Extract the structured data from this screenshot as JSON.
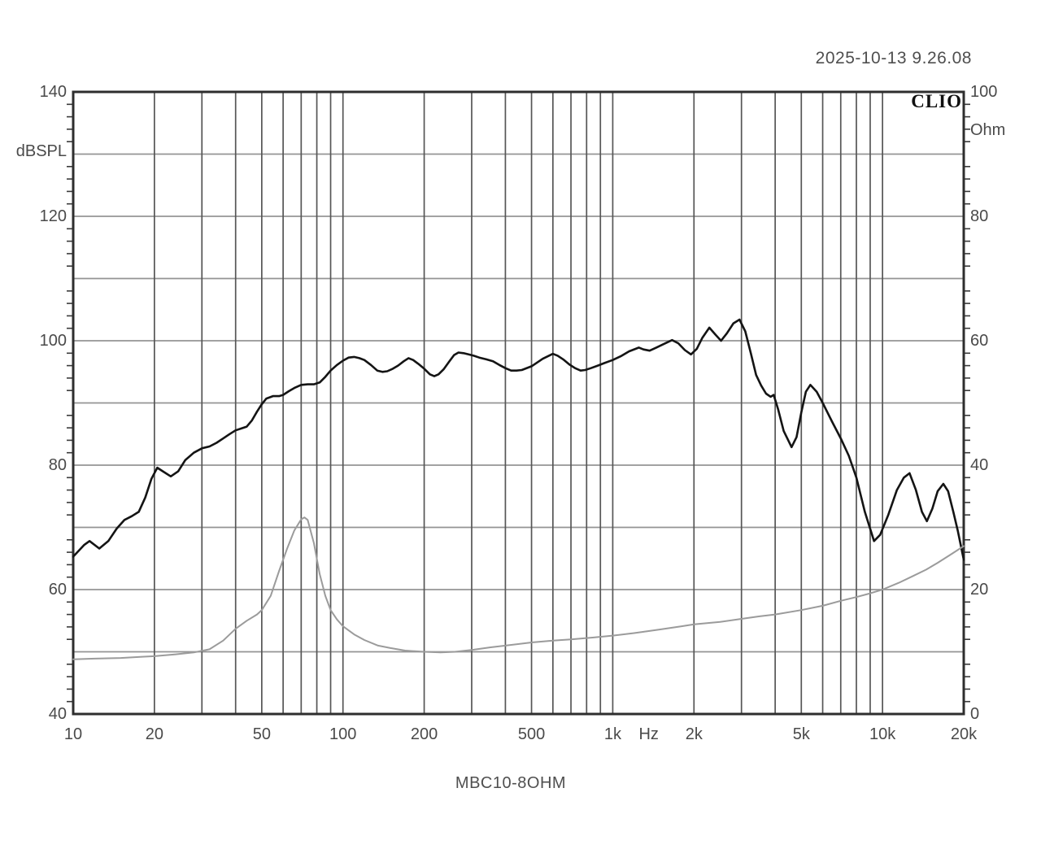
{
  "header": {
    "timestamp": "2025-10-13 9.26.08"
  },
  "branding": {
    "logo_text": "CLIO"
  },
  "chart": {
    "title": "MBC10-8OHM",
    "left_axis_unit": "dBSPL",
    "right_axis_unit": "Ohm",
    "left_tick_labels": [
      {
        "value": 140,
        "label": "140"
      },
      {
        "value": 120,
        "label": "120"
      },
      {
        "value": 100,
        "label": "100"
      },
      {
        "value": 80,
        "label": "80"
      },
      {
        "value": 60,
        "label": "60"
      },
      {
        "value": 40,
        "label": "40"
      }
    ],
    "right_tick_labels": [
      {
        "value": 100,
        "label": "100"
      },
      {
        "value": 80,
        "label": "80"
      },
      {
        "value": 60,
        "label": "60"
      },
      {
        "value": 40,
        "label": "40"
      },
      {
        "value": 20,
        "label": "20"
      },
      {
        "value": 0,
        "label": "0"
      }
    ],
    "x_tick_labels": [
      {
        "f": 10,
        "label": "10"
      },
      {
        "f": 20,
        "label": "20"
      },
      {
        "f": 50,
        "label": "50"
      },
      {
        "f": 100,
        "label": "100"
      },
      {
        "f": 200,
        "label": "200"
      },
      {
        "f": 500,
        "label": "500"
      },
      {
        "f": 1000,
        "label": "1k"
      },
      {
        "f": 1360,
        "label": "Hz"
      },
      {
        "f": 2000,
        "label": "2k"
      },
      {
        "f": 5000,
        "label": "5k"
      },
      {
        "f": 10000,
        "label": "10k"
      },
      {
        "f": 20000,
        "label": "20k"
      }
    ]
  },
  "colors": {
    "spl_curve": "#141414",
    "impedance_curve": "#9b9b9b",
    "vgrid": "#565656",
    "hgrid": "#949494",
    "frame": "#2e2e2e",
    "tick": "#3a3a3a"
  },
  "chart_data": {
    "type": "line",
    "title": "MBC10-8OHM",
    "x_axis": {
      "label": "Hz",
      "scale": "log",
      "range": [
        10,
        20000
      ]
    },
    "y_axis_left": {
      "label": "dBSPL",
      "range": [
        40,
        140
      ],
      "gridline_step": 10,
      "label_step": 20
    },
    "y_axis_right": {
      "label": "Ohm",
      "range": [
        0,
        100
      ],
      "label_step": 20
    },
    "grid": "on",
    "series": [
      {
        "name": "SPL frequency response",
        "unit": "dBSPL",
        "axis": "left",
        "color": "#141414",
        "points": [
          [
            10,
            65.3
          ],
          [
            11,
            67.2
          ],
          [
            11.5,
            67.8
          ],
          [
            12.5,
            66.6
          ],
          [
            13.5,
            67.8
          ],
          [
            14.5,
            69.8
          ],
          [
            15.5,
            71.2
          ],
          [
            16.5,
            71.8
          ],
          [
            17.5,
            72.5
          ],
          [
            18.5,
            74.8
          ],
          [
            19.5,
            77.8
          ],
          [
            20.5,
            79.6
          ],
          [
            21.5,
            79.0
          ],
          [
            23,
            78.2
          ],
          [
            24.5,
            79.0
          ],
          [
            26,
            80.8
          ],
          [
            28,
            82.0
          ],
          [
            30,
            82.7
          ],
          [
            32,
            83.0
          ],
          [
            34,
            83.6
          ],
          [
            36,
            84.3
          ],
          [
            38,
            85.0
          ],
          [
            40,
            85.6
          ],
          [
            42,
            85.9
          ],
          [
            44,
            86.2
          ],
          [
            46,
            87.2
          ],
          [
            48,
            88.6
          ],
          [
            50,
            89.8
          ],
          [
            52,
            90.7
          ],
          [
            55,
            91.1
          ],
          [
            58,
            91.1
          ],
          [
            60,
            91.3
          ],
          [
            63,
            91.9
          ],
          [
            66,
            92.4
          ],
          [
            70,
            92.9
          ],
          [
            74,
            93.0
          ],
          [
            78,
            93.0
          ],
          [
            82,
            93.3
          ],
          [
            86,
            94.2
          ],
          [
            90,
            95.2
          ],
          [
            95,
            96.1
          ],
          [
            100,
            96.8
          ],
          [
            105,
            97.3
          ],
          [
            110,
            97.4
          ],
          [
            115,
            97.2
          ],
          [
            120,
            96.9
          ],
          [
            127,
            96.1
          ],
          [
            134,
            95.2
          ],
          [
            140,
            95.0
          ],
          [
            146,
            95.1
          ],
          [
            153,
            95.5
          ],
          [
            160,
            96.0
          ],
          [
            168,
            96.7
          ],
          [
            175,
            97.2
          ],
          [
            182,
            96.9
          ],
          [
            190,
            96.3
          ],
          [
            200,
            95.5
          ],
          [
            210,
            94.6
          ],
          [
            218,
            94.3
          ],
          [
            226,
            94.6
          ],
          [
            236,
            95.4
          ],
          [
            248,
            96.7
          ],
          [
            258,
            97.7
          ],
          [
            268,
            98.1
          ],
          [
            280,
            98.0
          ],
          [
            292,
            97.8
          ],
          [
            305,
            97.6
          ],
          [
            320,
            97.3
          ],
          [
            340,
            97.0
          ],
          [
            360,
            96.7
          ],
          [
            380,
            96.1
          ],
          [
            400,
            95.6
          ],
          [
            420,
            95.2
          ],
          [
            440,
            95.2
          ],
          [
            460,
            95.3
          ],
          [
            500,
            95.9
          ],
          [
            550,
            97.1
          ],
          [
            600,
            97.9
          ],
          [
            625,
            97.6
          ],
          [
            655,
            97.0
          ],
          [
            690,
            96.2
          ],
          [
            725,
            95.6
          ],
          [
            760,
            95.2
          ],
          [
            790,
            95.3
          ],
          [
            830,
            95.6
          ],
          [
            880,
            96.0
          ],
          [
            930,
            96.4
          ],
          [
            1000,
            96.9
          ],
          [
            1070,
            97.5
          ],
          [
            1150,
            98.3
          ],
          [
            1250,
            98.9
          ],
          [
            1300,
            98.6
          ],
          [
            1370,
            98.4
          ],
          [
            1450,
            98.9
          ],
          [
            1550,
            99.5
          ],
          [
            1660,
            100.1
          ],
          [
            1750,
            99.6
          ],
          [
            1850,
            98.5
          ],
          [
            1950,
            97.8
          ],
          [
            2050,
            98.7
          ],
          [
            2150,
            100.5
          ],
          [
            2280,
            102.1
          ],
          [
            2400,
            101.0
          ],
          [
            2520,
            100.0
          ],
          [
            2650,
            101.2
          ],
          [
            2800,
            102.8
          ],
          [
            2950,
            103.4
          ],
          [
            3100,
            101.5
          ],
          [
            3250,
            98.0
          ],
          [
            3400,
            94.5
          ],
          [
            3550,
            92.8
          ],
          [
            3700,
            91.5
          ],
          [
            3850,
            91.0
          ],
          [
            3950,
            91.3
          ],
          [
            4100,
            89.0
          ],
          [
            4300,
            85.5
          ],
          [
            4600,
            82.9
          ],
          [
            4800,
            84.5
          ],
          [
            5000,
            88.5
          ],
          [
            5200,
            91.8
          ],
          [
            5400,
            92.9
          ],
          [
            5700,
            91.8
          ],
          [
            6000,
            90.0
          ],
          [
            6500,
            87.0
          ],
          [
            7000,
            84.3
          ],
          [
            7500,
            81.5
          ],
          [
            8000,
            78.0
          ],
          [
            8600,
            72.5
          ],
          [
            9300,
            67.8
          ],
          [
            9800,
            68.8
          ],
          [
            10500,
            72.0
          ],
          [
            11300,
            76.0
          ],
          [
            12000,
            78.0
          ],
          [
            12600,
            78.7
          ],
          [
            13300,
            76.0
          ],
          [
            14000,
            72.5
          ],
          [
            14600,
            71.0
          ],
          [
            15300,
            73.0
          ],
          [
            16000,
            75.8
          ],
          [
            16800,
            77.0
          ],
          [
            17500,
            75.8
          ],
          [
            18300,
            72.5
          ],
          [
            19000,
            69.5
          ],
          [
            20000,
            64.8
          ]
        ]
      },
      {
        "name": "Impedance",
        "unit": "Ohm",
        "axis": "right",
        "color": "#9b9b9b",
        "points": [
          [
            10,
            8.8
          ],
          [
            12,
            8.9
          ],
          [
            15,
            9.0
          ],
          [
            18,
            9.2
          ],
          [
            20,
            9.3
          ],
          [
            24,
            9.6
          ],
          [
            28,
            9.9
          ],
          [
            32,
            10.4
          ],
          [
            36,
            11.8
          ],
          [
            40,
            13.7
          ],
          [
            44,
            15.0
          ],
          [
            48,
            16.0
          ],
          [
            50,
            16.7
          ],
          [
            54,
            19.0
          ],
          [
            58,
            23.0
          ],
          [
            62,
            26.5
          ],
          [
            66,
            29.5
          ],
          [
            70,
            31.3
          ],
          [
            72,
            31.6
          ],
          [
            74,
            31.2
          ],
          [
            78,
            27.5
          ],
          [
            82,
            22.5
          ],
          [
            86,
            19.0
          ],
          [
            90,
            16.7
          ],
          [
            95,
            15.2
          ],
          [
            100,
            14.1
          ],
          [
            110,
            12.8
          ],
          [
            120,
            11.9
          ],
          [
            135,
            11.0
          ],
          [
            150,
            10.6
          ],
          [
            170,
            10.2
          ],
          [
            200,
            10.0
          ],
          [
            230,
            9.9
          ],
          [
            260,
            10.0
          ],
          [
            300,
            10.3
          ],
          [
            350,
            10.7
          ],
          [
            400,
            11.0
          ],
          [
            500,
            11.5
          ],
          [
            600,
            11.8
          ],
          [
            700,
            12.0
          ],
          [
            850,
            12.3
          ],
          [
            1000,
            12.6
          ],
          [
            1200,
            13.0
          ],
          [
            1500,
            13.6
          ],
          [
            1800,
            14.1
          ],
          [
            2000,
            14.4
          ],
          [
            2500,
            14.8
          ],
          [
            3000,
            15.3
          ],
          [
            3500,
            15.7
          ],
          [
            4000,
            16.0
          ],
          [
            5000,
            16.7
          ],
          [
            6000,
            17.4
          ],
          [
            7000,
            18.2
          ],
          [
            8000,
            18.8
          ],
          [
            9000,
            19.4
          ],
          [
            10000,
            20.0
          ],
          [
            11500,
            21.1
          ],
          [
            13000,
            22.2
          ],
          [
            14500,
            23.2
          ],
          [
            16000,
            24.3
          ],
          [
            18000,
            25.7
          ],
          [
            20000,
            27.0
          ]
        ]
      }
    ]
  }
}
